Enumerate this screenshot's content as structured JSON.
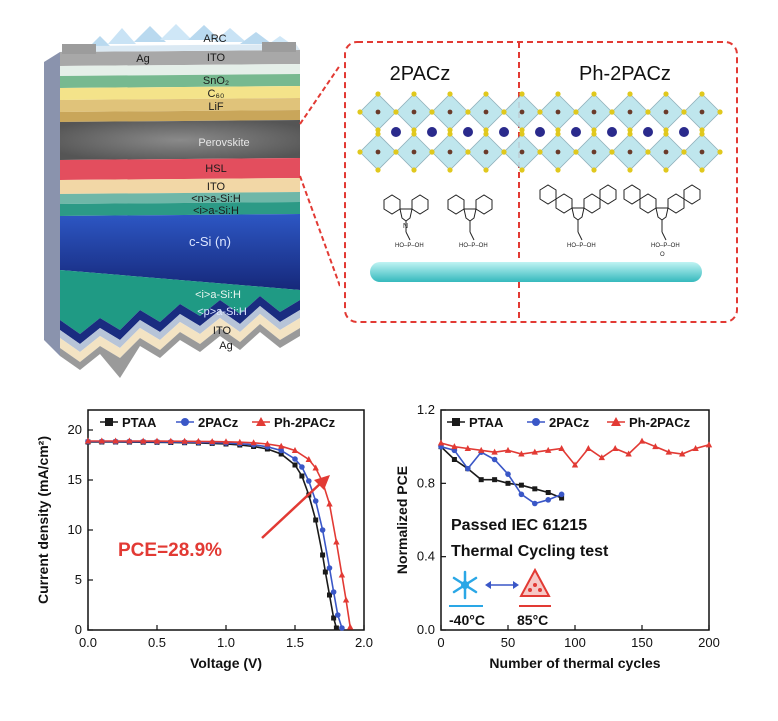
{
  "device_stack": {
    "layers": [
      "ARC",
      "Ag",
      "ITO",
      "SnO₂",
      "C₆₀",
      "LiF",
      "Perovskite",
      "HSL",
      "ITO",
      "<n>a-Si:H",
      "<i>a-Si:H",
      "c-Si (n)",
      "<i>a-Si:H",
      "<p>a-Si:H",
      "ITO",
      "Ag"
    ]
  },
  "molecule_panel": {
    "left_title": "2PACz",
    "right_title": "Ph-2PACz",
    "phosphonic_label": "HO–P–OH",
    "oxygen_label": "O",
    "nitrogen_label": "N"
  },
  "chart_data": [
    {
      "type": "line",
      "xlabel": "Voltage (V)",
      "ylabel": "Current density (mA/cm²)",
      "xlim": [
        0,
        2.0
      ],
      "ylim": [
        0,
        22
      ],
      "xticks": [
        "0.0",
        "0.5",
        "1.0",
        "1.5",
        "2.0"
      ],
      "yticks": [
        "0",
        "5",
        "10",
        "15",
        "20"
      ],
      "legend_position": "top",
      "annotation": "PCE=28.9%",
      "series": [
        {
          "name": "PTAA",
          "color": "#1a1a1a",
          "marker": "square",
          "x": [
            0,
            0.1,
            0.2,
            0.3,
            0.4,
            0.5,
            0.6,
            0.7,
            0.8,
            0.9,
            1.0,
            1.1,
            1.2,
            1.3,
            1.4,
            1.5,
            1.55,
            1.6,
            1.65,
            1.7,
            1.72,
            1.75,
            1.78,
            1.8
          ],
          "y": [
            18.8,
            18.8,
            18.8,
            18.79,
            18.78,
            18.77,
            18.75,
            18.73,
            18.7,
            18.66,
            18.6,
            18.5,
            18.35,
            18.1,
            17.6,
            16.5,
            15.4,
            13.5,
            11.0,
            7.5,
            5.8,
            3.5,
            1.2,
            0.2
          ]
        },
        {
          "name": "2PACz",
          "color": "#3a57c7",
          "marker": "circle",
          "x": [
            0,
            0.1,
            0.2,
            0.3,
            0.4,
            0.5,
            0.6,
            0.7,
            0.8,
            0.9,
            1.0,
            1.1,
            1.2,
            1.3,
            1.4,
            1.5,
            1.55,
            1.6,
            1.65,
            1.7,
            1.75,
            1.78,
            1.81,
            1.84
          ],
          "y": [
            18.85,
            18.85,
            18.84,
            18.84,
            18.83,
            18.82,
            18.81,
            18.79,
            18.77,
            18.74,
            18.7,
            18.63,
            18.52,
            18.32,
            17.95,
            17.1,
            16.3,
            14.9,
            12.9,
            10.0,
            6.2,
            3.8,
            1.5,
            0.2
          ]
        },
        {
          "name": "Ph-2PACz",
          "color": "#e23a34",
          "marker": "triangle",
          "x": [
            0,
            0.1,
            0.2,
            0.3,
            0.4,
            0.5,
            0.6,
            0.7,
            0.8,
            0.9,
            1.0,
            1.1,
            1.2,
            1.3,
            1.4,
            1.5,
            1.6,
            1.65,
            1.7,
            1.75,
            1.8,
            1.84,
            1.87,
            1.9
          ],
          "y": [
            18.9,
            18.9,
            18.9,
            18.9,
            18.89,
            18.89,
            18.88,
            18.87,
            18.86,
            18.84,
            18.82,
            18.78,
            18.72,
            18.6,
            18.38,
            17.95,
            17.05,
            16.2,
            14.8,
            12.6,
            8.8,
            5.5,
            3.0,
            0.3
          ]
        }
      ]
    },
    {
      "type": "line",
      "xlabel": "Number of thermal cycles",
      "ylabel": "Normalized PCE",
      "xlim": [
        0,
        200
      ],
      "ylim": [
        0,
        1.2
      ],
      "xticks": [
        "0",
        "50",
        "100",
        "150",
        "200"
      ],
      "yticks": [
        "0.0",
        "0.4",
        "0.8",
        "1.2"
      ],
      "legend_position": "top",
      "annotations": [
        "Passed IEC 61215",
        "Thermal Cycling test",
        "-40°C",
        "85°C"
      ],
      "series": [
        {
          "name": "PTAA",
          "color": "#1a1a1a",
          "marker": "square",
          "x": [
            0,
            10,
            20,
            30,
            40,
            50,
            60,
            70,
            80,
            90
          ],
          "y": [
            1.0,
            0.93,
            0.88,
            0.82,
            0.82,
            0.8,
            0.79,
            0.77,
            0.75,
            0.72
          ]
        },
        {
          "name": "2PACz",
          "color": "#3a57c7",
          "marker": "circle",
          "x": [
            0,
            10,
            20,
            30,
            40,
            50,
            60,
            70,
            80,
            90
          ],
          "y": [
            1.0,
            0.98,
            0.88,
            0.97,
            0.93,
            0.85,
            0.74,
            0.69,
            0.71,
            0.74
          ]
        },
        {
          "name": "Ph-2PACz",
          "color": "#e23a34",
          "marker": "triangle",
          "x": [
            0,
            10,
            20,
            30,
            40,
            50,
            60,
            70,
            80,
            90,
            100,
            110,
            120,
            130,
            140,
            150,
            160,
            170,
            180,
            190,
            200
          ],
          "y": [
            1.02,
            1.0,
            0.99,
            0.98,
            0.97,
            0.98,
            0.96,
            0.97,
            0.98,
            0.99,
            0.9,
            0.99,
            0.94,
            0.99,
            0.96,
            1.03,
            1.0,
            0.97,
            0.96,
            0.99,
            1.01
          ]
        }
      ]
    }
  ]
}
